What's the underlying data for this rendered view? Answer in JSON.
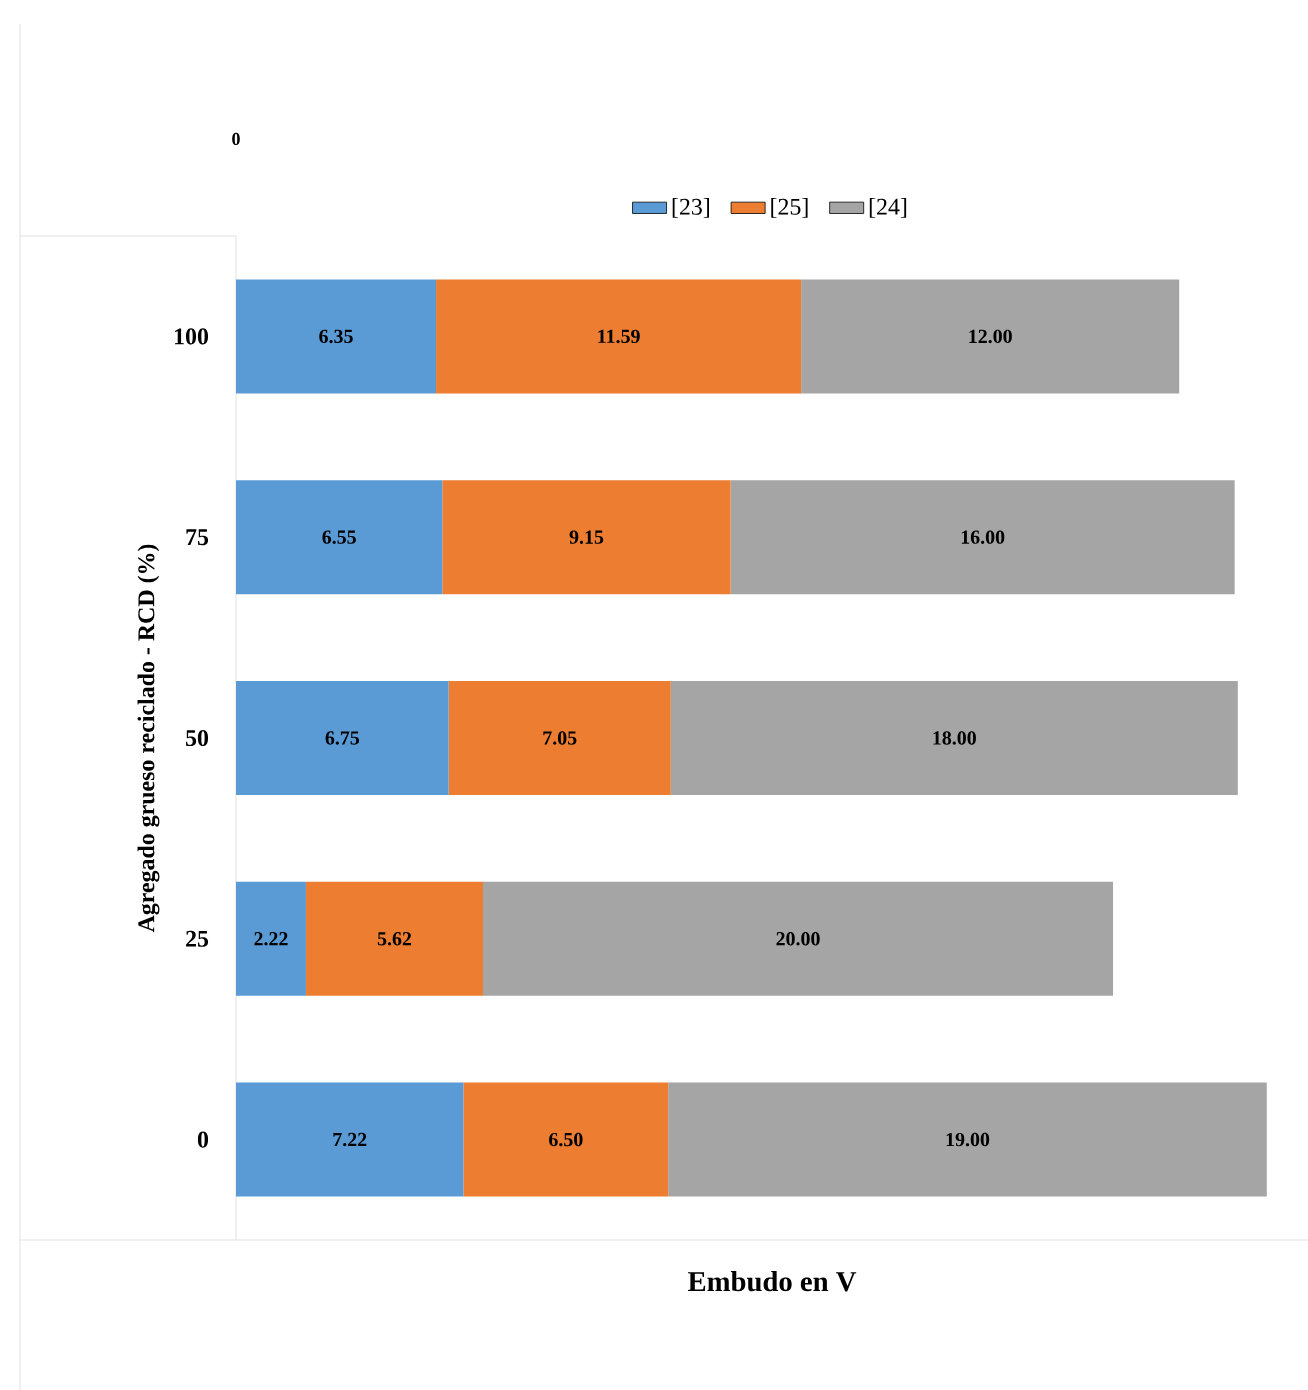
{
  "chart_data": {
    "type": "bar",
    "orientation": "horizontal",
    "stacked": true,
    "xlabel": "Embudo en V",
    "ylabel": "Agregado grueso reciclado - RCD (%)",
    "categories": [
      "100",
      "75",
      "50",
      "25",
      "0"
    ],
    "series": [
      {
        "name": "[23]",
        "color": "#5b9bd5",
        "values": [
          6.35,
          6.55,
          6.75,
          2.22,
          7.22
        ],
        "value_labels": [
          "6.35",
          "6.55",
          "6.75",
          "2.22",
          "7.22"
        ]
      },
      {
        "name": "[25]",
        "color": "#ed7d31",
        "values": [
          11.59,
          9.15,
          7.05,
          5.62,
          6.5
        ],
        "value_labels": [
          "11.59",
          "9.15",
          "7.05",
          "5.62",
          "6.50"
        ]
      },
      {
        "name": "[24]",
        "color": "#a5a5a5",
        "values": [
          12,
          16,
          18,
          20,
          19
        ],
        "value_labels": [
          "12.00",
          "16.00",
          "18.00",
          "20.00",
          "19.00"
        ]
      }
    ],
    "annotations": [
      "0"
    ],
    "legend": "top"
  }
}
